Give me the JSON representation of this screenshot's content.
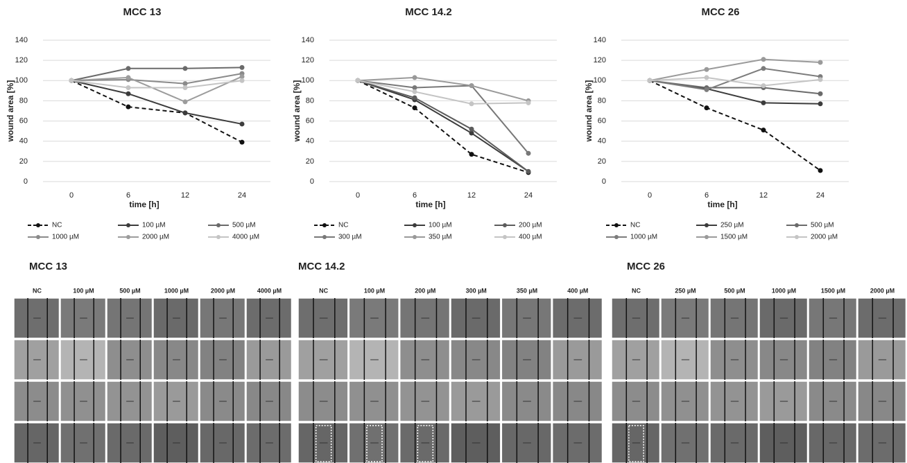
{
  "chart_data": [
    {
      "type": "line",
      "title": "MCC 13",
      "x_label": "time [h]",
      "y_label": "wound area [%]",
      "categories": [
        "0",
        "6",
        "12",
        "24"
      ],
      "ylim": [
        0,
        140
      ],
      "yticks": [
        0,
        20,
        40,
        60,
        80,
        100,
        120,
        140
      ],
      "grid": true,
      "series": [
        {
          "name": "NC",
          "color": "#111111",
          "dashed": true,
          "values": [
            100,
            74,
            68,
            39
          ]
        },
        {
          "name": "100 µM",
          "color": "#3c3c3c",
          "values": [
            100,
            87,
            68,
            57
          ]
        },
        {
          "name": "500 µM",
          "color": "#6a6a6a",
          "values": [
            100,
            112,
            112,
            113
          ]
        },
        {
          "name": "1000 µM",
          "color": "#8a8a8a",
          "values": [
            100,
            101,
            97,
            107
          ]
        },
        {
          "name": "2000 µM",
          "color": "#9c9c9c",
          "values": [
            100,
            103,
            79,
            104
          ]
        },
        {
          "name": "4000 µM",
          "color": "#c4c4c4",
          "values": [
            100,
            93,
            93,
            100
          ]
        }
      ]
    },
    {
      "type": "line",
      "title": "MCC 14.2",
      "x_label": "time [h]",
      "y_label": "wound area [%]",
      "categories": [
        "0",
        "6",
        "12",
        "24"
      ],
      "ylim": [
        0,
        140
      ],
      "yticks": [
        0,
        20,
        40,
        60,
        80,
        100,
        120,
        140
      ],
      "grid": true,
      "series": [
        {
          "name": "NC",
          "color": "#111111",
          "dashed": true,
          "values": [
            100,
            73,
            27,
            9
          ]
        },
        {
          "name": "100 µM",
          "color": "#3c3c3c",
          "values": [
            100,
            81,
            48,
            10
          ]
        },
        {
          "name": "200 µM",
          "color": "#5c5c5c",
          "values": [
            100,
            83,
            52,
            10
          ]
        },
        {
          "name": "300 µM",
          "color": "#787878",
          "values": [
            100,
            93,
            95,
            28
          ]
        },
        {
          "name": "350 µM",
          "color": "#999999",
          "values": [
            100,
            103,
            95,
            80
          ]
        },
        {
          "name": "400 µM",
          "color": "#c4c4c4",
          "values": [
            100,
            89,
            77,
            78
          ]
        }
      ]
    },
    {
      "type": "line",
      "title": "MCC 26",
      "x_label": "time [h]",
      "y_label": "wound area [%]",
      "categories": [
        "0",
        "6",
        "12",
        "24"
      ],
      "ylim": [
        0,
        140
      ],
      "yticks": [
        0,
        20,
        40,
        60,
        80,
        100,
        120,
        140
      ],
      "grid": true,
      "series": [
        {
          "name": "NC",
          "color": "#111111",
          "dashed": true,
          "values": [
            100,
            73,
            51,
            11
          ]
        },
        {
          "name": "250 µM",
          "color": "#3c3c3c",
          "values": [
            100,
            92,
            78,
            77
          ]
        },
        {
          "name": "500 µM",
          "color": "#6a6a6a",
          "values": [
            100,
            93,
            93,
            87
          ]
        },
        {
          "name": "1000 µM",
          "color": "#7c7c7c",
          "values": [
            100,
            91,
            112,
            104
          ]
        },
        {
          "name": "1500 µM",
          "color": "#9a9a9a",
          "values": [
            100,
            111,
            121,
            118
          ]
        },
        {
          "name": "2000 µM",
          "color": "#c4c4c4",
          "values": [
            100,
            103,
            95,
            101
          ]
        }
      ]
    }
  ],
  "image_panels": [
    {
      "title": "MCC 13",
      "columns": [
        "NC",
        "100 µM",
        "500 µM",
        "1000 µM",
        "2000 µM",
        "4000 µM"
      ]
    },
    {
      "title": "MCC 14.2",
      "columns": [
        "NC",
        "100 µM",
        "200 µM",
        "300 µM",
        "350 µM",
        "400 µM"
      ]
    },
    {
      "title": "MCC 26",
      "columns": [
        "NC",
        "250 µM",
        "500 µM",
        "1000 µM",
        "1500 µM",
        "2000 µM"
      ]
    }
  ]
}
